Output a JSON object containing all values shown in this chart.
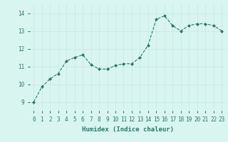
{
  "x": [
    0,
    1,
    2,
    3,
    4,
    5,
    6,
    7,
    8,
    9,
    10,
    11,
    12,
    13,
    14,
    15,
    16,
    17,
    18,
    19,
    20,
    21,
    22,
    23
  ],
  "y": [
    9.0,
    9.85,
    10.3,
    10.6,
    11.3,
    11.5,
    11.65,
    11.1,
    10.85,
    10.85,
    11.05,
    11.15,
    11.15,
    11.5,
    12.2,
    13.65,
    13.85,
    13.3,
    13.0,
    13.3,
    13.4,
    13.4,
    13.3,
    13.0
  ],
  "line_color": "#2a7a6a",
  "marker": "D",
  "marker_size": 2,
  "bg_color": "#d8f5f0",
  "grid_color": "#c8e8e4",
  "xlabel": "Humidex (Indice chaleur)",
  "ylim": [
    8.5,
    14.5
  ],
  "xlim": [
    -0.5,
    23.5
  ],
  "yticks": [
    9,
    10,
    11,
    12,
    13,
    14
  ],
  "xticks": [
    0,
    1,
    2,
    3,
    4,
    5,
    6,
    7,
    8,
    9,
    10,
    11,
    12,
    13,
    14,
    15,
    16,
    17,
    18,
    19,
    20,
    21,
    22,
    23
  ],
  "tick_color": "#2a7a6a",
  "label_fontsize": 6.5,
  "tick_fontsize": 5.5
}
